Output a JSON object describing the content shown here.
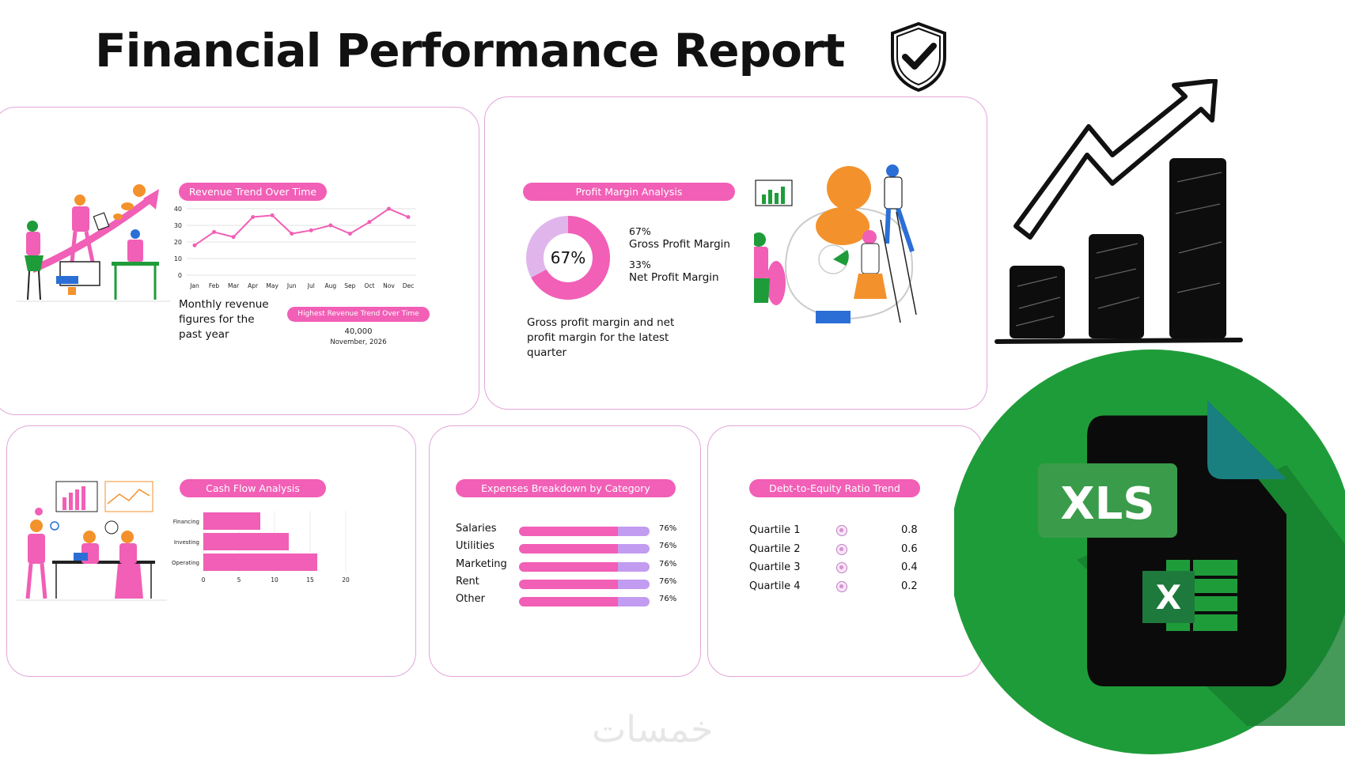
{
  "title": "Financial Performance Report",
  "watermark": "خمسات",
  "revenue": {
    "pill": "Revenue Trend Over Time",
    "description": "Monthly revenue figures for the past year",
    "highlight_pill": "Highest Revenue Trend Over Time",
    "highlight_value": "40,000",
    "highlight_date": "November, 2026",
    "chart_data": {
      "type": "line",
      "categories": [
        "Jan",
        "Feb",
        "Mar",
        "Apr",
        "May",
        "Jun",
        "Jul",
        "Aug",
        "Sep",
        "Oct",
        "Nov",
        "Dec"
      ],
      "values": [
        18,
        26,
        23,
        35,
        36,
        25,
        27,
        30,
        25,
        32,
        40,
        35
      ],
      "yticks": [
        0,
        10,
        20,
        30,
        40
      ],
      "ylim": [
        0,
        40
      ],
      "grid": true
    }
  },
  "profit": {
    "pill": "Profit Margin Analysis",
    "donut_label": "67%",
    "donut_value": 67,
    "gross_pct": "67%",
    "gross_label": "Gross Profit Margin",
    "net_pct": "33%",
    "net_label": "Net Profit Margin",
    "description": "Gross profit margin and net profit margin for the latest quarter"
  },
  "cashflow": {
    "pill": "Cash Flow Analysis",
    "chart_data": {
      "type": "bar",
      "orientation": "horizontal",
      "categories": [
        "Financing",
        "Investing",
        "Operating"
      ],
      "values": [
        8,
        12,
        16
      ],
      "xticks": [
        0,
        5,
        10,
        15,
        20
      ],
      "xlim": [
        0,
        20
      ]
    }
  },
  "expenses": {
    "pill": "Expenses Breakdown by Category",
    "items": [
      {
        "label": "Salaries",
        "pct": "76%",
        "value": 76
      },
      {
        "label": "Utilities",
        "pct": "76%",
        "value": 76
      },
      {
        "label": "Marketing",
        "pct": "76%",
        "value": 76
      },
      {
        "label": "Rent",
        "pct": "76%",
        "value": 76
      },
      {
        "label": "Other",
        "pct": "76%",
        "value": 76
      }
    ]
  },
  "debt": {
    "pill": "Debt-to-Equity Ratio Trend",
    "items": [
      {
        "label": "Quartile 1",
        "value": "0.8"
      },
      {
        "label": "Quartile 2",
        "value": "0.6"
      },
      {
        "label": "Quartile 3",
        "value": "0.4"
      },
      {
        "label": "Quartile 4",
        "value": "0.2"
      }
    ]
  },
  "xls": {
    "label": "XLS",
    "x_letter": "X"
  },
  "colors": {
    "pink": "#f15fb6",
    "purple": "#c29cf0",
    "orange": "#f3922c",
    "green": "#1f9c3a",
    "border": "#e3a6d9"
  }
}
